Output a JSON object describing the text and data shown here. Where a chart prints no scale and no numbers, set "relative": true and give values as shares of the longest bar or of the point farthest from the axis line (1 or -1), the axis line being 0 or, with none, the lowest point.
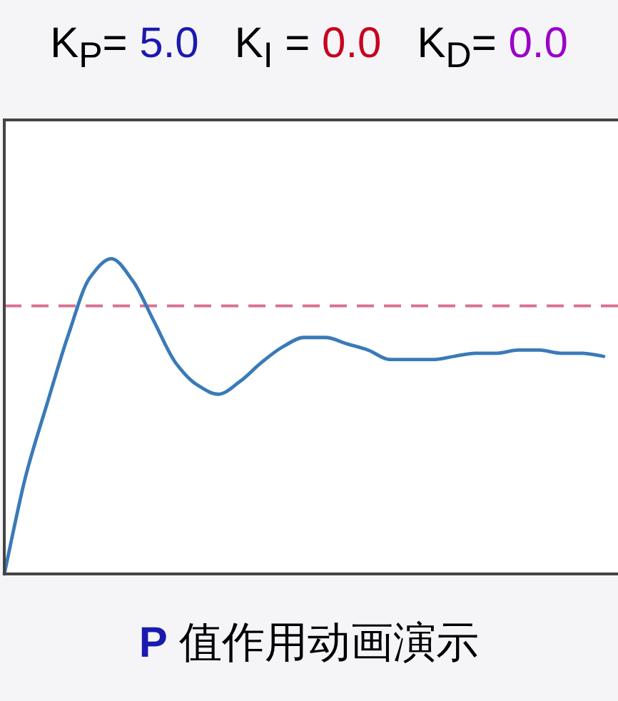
{
  "chart_data": {
    "type": "line",
    "title": "K$_{P}$= 5.0   K$_{I}$ = 0.0   K$_{D}$= 0.0",
    "annotations": [
      "P 值作用动画演示"
    ],
    "relative": true,
    "categories": [
      null,
      null,
      null,
      null,
      null,
      null,
      null,
      null,
      null,
      null,
      null,
      null,
      null,
      null,
      null,
      null,
      null,
      null,
      null,
      null,
      null,
      null,
      null,
      null,
      null,
      null,
      null,
      null,
      null
    ],
    "series": [
      {
        "color": "#3a7ab8",
        "values": [
          0,
          0.31,
          0.54,
          0.76,
          0.94,
          1.0,
          0.93,
          0.8,
          0.67,
          0.6,
          0.57,
          0.61,
          0.67,
          0.72,
          0.75,
          0.75,
          0.73,
          0.71,
          0.68,
          0.68,
          0.68,
          0.69,
          0.7,
          0.7,
          0.71,
          0.71,
          0.7,
          0.7,
          0.69
        ]
      }
    ],
    "ref_lines": [
      {
        "axis": "y",
        "value": 0.85,
        "color": "#d9728f",
        "line_style": "dashed"
      }
    ],
    "marker": "none",
    "line_style": "solid"
  }
}
